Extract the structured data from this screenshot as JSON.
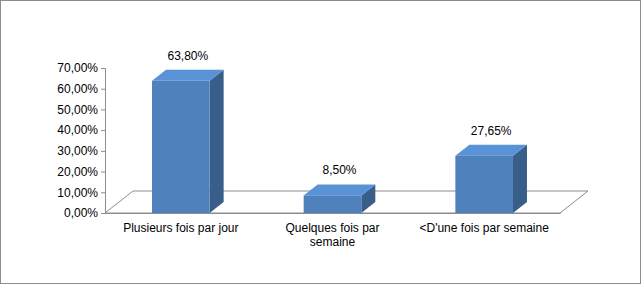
{
  "chart_data": {
    "type": "bar",
    "categories": [
      "Plusieurs fois par jour",
      "Quelques fois par semaine",
      "<D'une fois par semaine"
    ],
    "values": [
      63.8,
      8.5,
      27.65
    ],
    "value_labels": [
      "63,80%",
      "8,50%",
      "27,65%"
    ],
    "data_labels": true,
    "color": "#4f81bd",
    "ylim": [
      0,
      70
    ],
    "yticks": [
      {
        "value": 0,
        "label": "0,00%"
      },
      {
        "value": 10,
        "label": "10,00%"
      },
      {
        "value": 20,
        "label": "20,00%"
      },
      {
        "value": 30,
        "label": "30,00%"
      },
      {
        "value": 40,
        "label": "40,00%"
      },
      {
        "value": 50,
        "label": "50,00%"
      },
      {
        "value": 60,
        "label": "60,00%"
      },
      {
        "value": 70,
        "label": "70,00%"
      }
    ],
    "grid": false
  }
}
